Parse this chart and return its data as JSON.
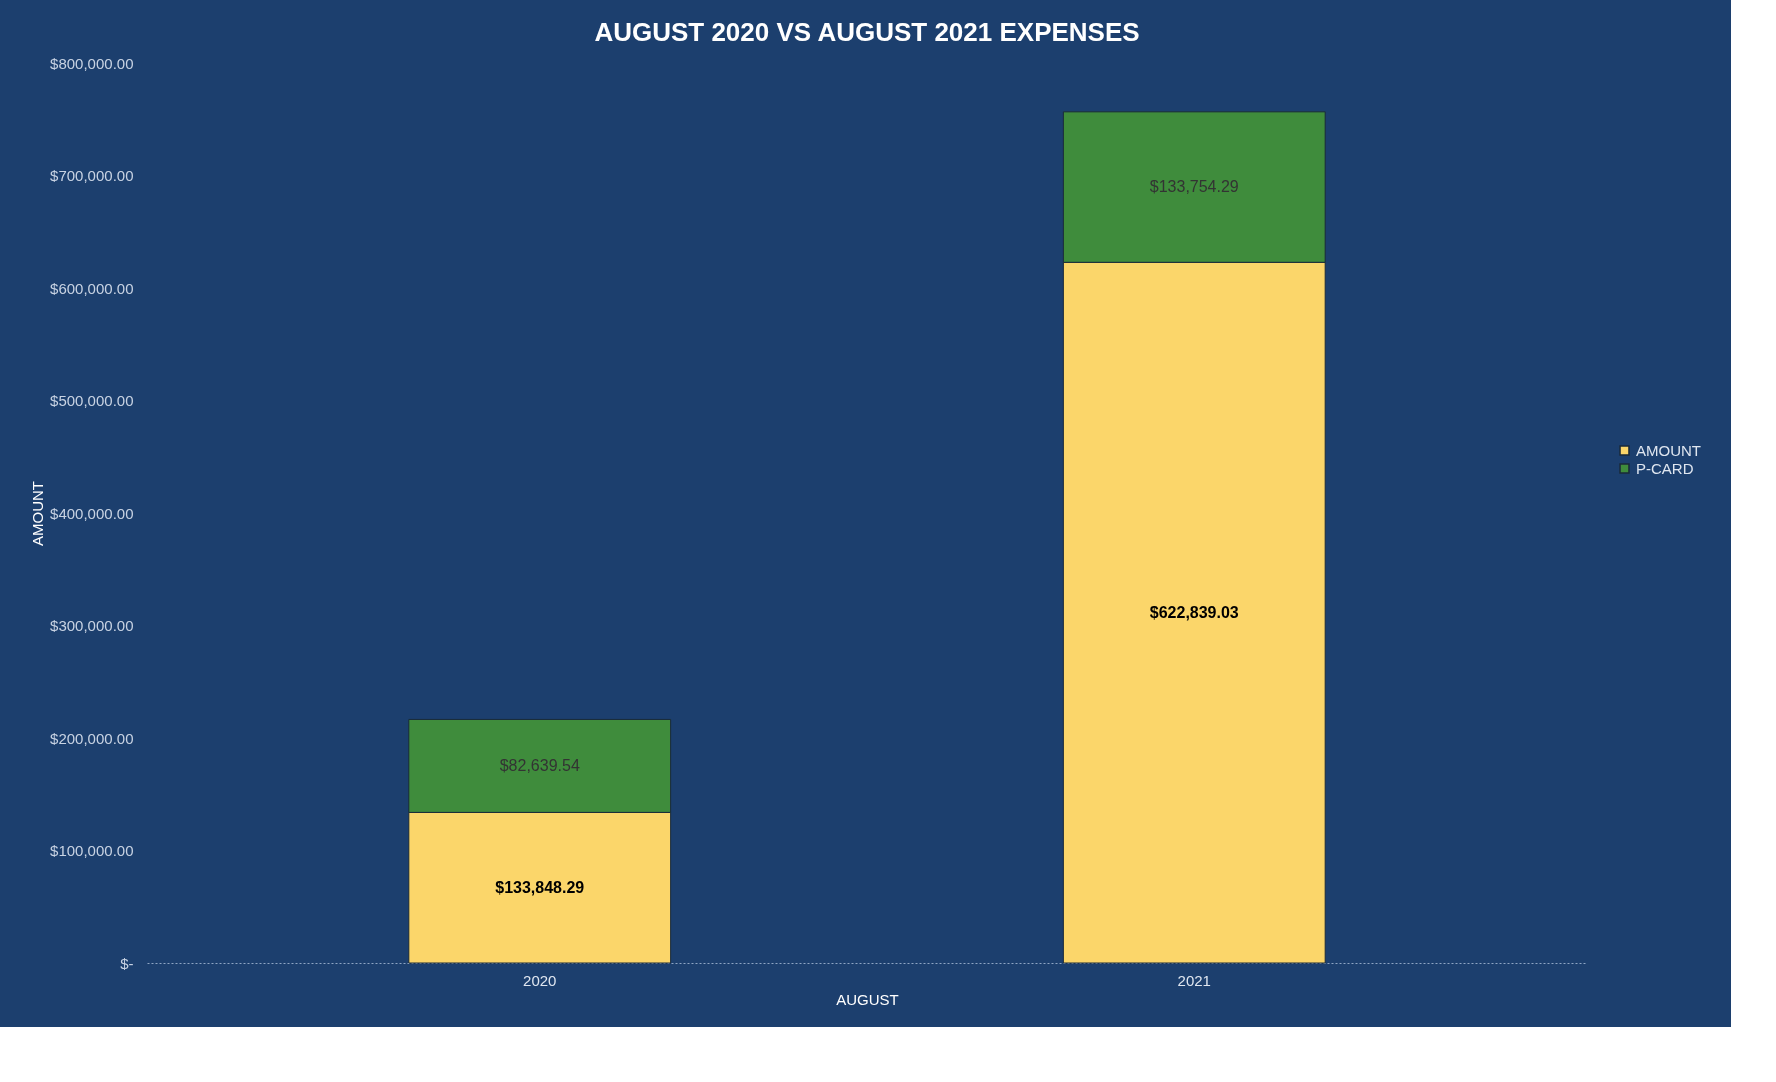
{
  "chart_data": {
    "type": "bar",
    "title": "AUGUST 2020 VS AUGUST 2021 EXPENSES",
    "xlabel": "AUGUST",
    "ylabel": "AMOUNT",
    "categories": [
      "2020",
      "2021"
    ],
    "series": [
      {
        "name": "AMOUNT",
        "color": "#fbd66a",
        "values": [
          133848.29,
          622839.03
        ],
        "value_labels": [
          "$133,848.29",
          "$622,839.03"
        ]
      },
      {
        "name": "P-CARD",
        "color": "#3f8c3c",
        "values": [
          82639.54,
          133754.29
        ],
        "value_labels": [
          "$82,639.54",
          "$133,754.29"
        ]
      }
    ],
    "stacked": true,
    "legend": "right",
    "grid": false,
    "ylim": [
      0,
      800000
    ],
    "yticks": [
      {
        "value": 0,
        "label": "$-"
      },
      {
        "value": 100000,
        "label": "$100,000.00"
      },
      {
        "value": 200000,
        "label": "$200,000.00"
      },
      {
        "value": 300000,
        "label": "$300,000.00"
      },
      {
        "value": 400000,
        "label": "$400,000.00"
      },
      {
        "value": 500000,
        "label": "$500,000.00"
      },
      {
        "value": 600000,
        "label": "$600,000.00"
      },
      {
        "value": 700000,
        "label": "$700,000.00"
      },
      {
        "value": 800000,
        "label": "$800,000.00"
      }
    ]
  }
}
